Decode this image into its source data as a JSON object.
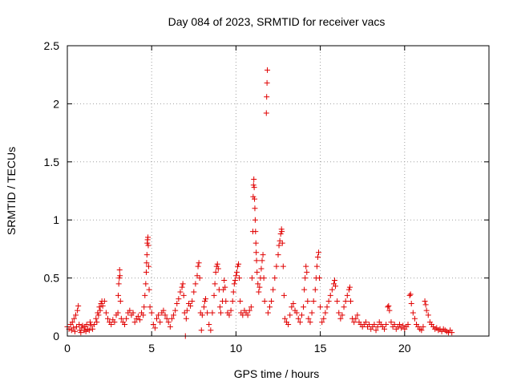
{
  "chart_data": {
    "type": "scatter",
    "title": "Day 084 of 2023, SRMTID for receiver vacs",
    "xlabel": "GPS time / hours",
    "ylabel": "SRMTID / TECUs",
    "xlim": [
      0,
      25
    ],
    "ylim": [
      0,
      2.5
    ],
    "xticks": [
      0,
      5,
      10,
      15,
      20
    ],
    "yticks": [
      0,
      0.5,
      1,
      1.5,
      2,
      2.5
    ],
    "xtick_labels": [
      "0",
      "5",
      "10",
      "15",
      "20"
    ],
    "ytick_labels": [
      "0",
      "0.5",
      "1",
      "1.5",
      "2",
      "2.5"
    ],
    "grid": true,
    "marker": "+",
    "color": "#e00000",
    "series": [
      {
        "name": "SRMTID",
        "points": [
          [
            0.0,
            0.08
          ],
          [
            0.1,
            0.06
          ],
          [
            0.2,
            0.1
          ],
          [
            0.25,
            0.05
          ],
          [
            0.3,
            0.12
          ],
          [
            0.35,
            0.07
          ],
          [
            0.4,
            0.15
          ],
          [
            0.45,
            0.04
          ],
          [
            0.5,
            0.18
          ],
          [
            0.55,
            0.08
          ],
          [
            0.6,
            0.22
          ],
          [
            0.65,
            0.26
          ],
          [
            0.7,
            0.1
          ],
          [
            0.75,
            0.05
          ],
          [
            0.8,
            0.03
          ],
          [
            0.85,
            0.07
          ],
          [
            0.9,
            0.09
          ],
          [
            1.0,
            0.05
          ],
          [
            1.05,
            0.08
          ],
          [
            1.1,
            0.04
          ],
          [
            1.15,
            0.1
          ],
          [
            1.2,
            0.06
          ],
          [
            1.3,
            0.05
          ],
          [
            1.35,
            0.12
          ],
          [
            1.4,
            0.09
          ],
          [
            1.5,
            0.06
          ],
          [
            1.6,
            0.1
          ],
          [
            1.7,
            0.15
          ],
          [
            1.75,
            0.12
          ],
          [
            1.8,
            0.2
          ],
          [
            1.85,
            0.18
          ],
          [
            1.9,
            0.25
          ],
          [
            1.95,
            0.22
          ],
          [
            2.0,
            0.28
          ],
          [
            2.05,
            0.3
          ],
          [
            2.1,
            0.26
          ],
          [
            2.2,
            0.3
          ],
          [
            2.3,
            0.2
          ],
          [
            2.4,
            0.15
          ],
          [
            2.5,
            0.12
          ],
          [
            2.6,
            0.1
          ],
          [
            2.7,
            0.14
          ],
          [
            2.8,
            0.12
          ],
          [
            2.9,
            0.18
          ],
          [
            3.0,
            0.2
          ],
          [
            3.02,
            0.35
          ],
          [
            3.05,
            0.45
          ],
          [
            3.08,
            0.5
          ],
          [
            3.1,
            0.57
          ],
          [
            3.12,
            0.52
          ],
          [
            3.15,
            0.3
          ],
          [
            3.2,
            0.15
          ],
          [
            3.3,
            0.12
          ],
          [
            3.4,
            0.1
          ],
          [
            3.5,
            0.15
          ],
          [
            3.6,
            0.2
          ],
          [
            3.7,
            0.22
          ],
          [
            3.8,
            0.18
          ],
          [
            3.9,
            0.2
          ],
          [
            4.0,
            0.12
          ],
          [
            4.1,
            0.15
          ],
          [
            4.2,
            0.17
          ],
          [
            4.3,
            0.14
          ],
          [
            4.4,
            0.2
          ],
          [
            4.5,
            0.18
          ],
          [
            4.55,
            0.25
          ],
          [
            4.6,
            0.35
          ],
          [
            4.65,
            0.45
          ],
          [
            4.68,
            0.55
          ],
          [
            4.7,
            0.63
          ],
          [
            4.72,
            0.7
          ],
          [
            4.74,
            0.8
          ],
          [
            4.76,
            0.83
          ],
          [
            4.78,
            0.85
          ],
          [
            4.8,
            0.78
          ],
          [
            4.82,
            0.6
          ],
          [
            4.85,
            0.4
          ],
          [
            4.9,
            0.25
          ],
          [
            5.0,
            0.2
          ],
          [
            5.1,
            0.1
          ],
          [
            5.2,
            0.07
          ],
          [
            5.3,
            0.15
          ],
          [
            5.4,
            0.18
          ],
          [
            5.5,
            0.12
          ],
          [
            5.6,
            0.2
          ],
          [
            5.7,
            0.22
          ],
          [
            5.8,
            0.18
          ],
          [
            5.9,
            0.15
          ],
          [
            6.0,
            0.12
          ],
          [
            6.1,
            0.08
          ],
          [
            6.2,
            0.15
          ],
          [
            6.3,
            0.18
          ],
          [
            6.4,
            0.22
          ],
          [
            6.5,
            0.28
          ],
          [
            6.6,
            0.32
          ],
          [
            6.7,
            0.38
          ],
          [
            6.8,
            0.42
          ],
          [
            6.85,
            0.45
          ],
          [
            6.9,
            0.35
          ],
          [
            6.95,
            0.2
          ],
          [
            7.0,
            0.0
          ],
          [
            7.05,
            0.15
          ],
          [
            7.1,
            0.22
          ],
          [
            7.2,
            0.28
          ],
          [
            7.3,
            0.26
          ],
          [
            7.4,
            0.3
          ],
          [
            7.5,
            0.38
          ],
          [
            7.6,
            0.45
          ],
          [
            7.7,
            0.52
          ],
          [
            7.75,
            0.6
          ],
          [
            7.8,
            0.63
          ],
          [
            7.85,
            0.5
          ],
          [
            7.9,
            0.2
          ],
          [
            7.95,
            0.05
          ],
          [
            8.0,
            0.18
          ],
          [
            8.1,
            0.25
          ],
          [
            8.15,
            0.3
          ],
          [
            8.2,
            0.32
          ],
          [
            8.3,
            0.2
          ],
          [
            8.4,
            0.1
          ],
          [
            8.5,
            0.05
          ],
          [
            8.6,
            0.2
          ],
          [
            8.7,
            0.35
          ],
          [
            8.75,
            0.45
          ],
          [
            8.8,
            0.55
          ],
          [
            8.85,
            0.6
          ],
          [
            8.9,
            0.62
          ],
          [
            8.95,
            0.58
          ],
          [
            9.0,
            0.4
          ],
          [
            9.05,
            0.25
          ],
          [
            9.1,
            0.2
          ],
          [
            9.2,
            0.3
          ],
          [
            9.25,
            0.4
          ],
          [
            9.3,
            0.48
          ],
          [
            9.35,
            0.42
          ],
          [
            9.4,
            0.3
          ],
          [
            9.5,
            0.2
          ],
          [
            9.6,
            0.18
          ],
          [
            9.7,
            0.22
          ],
          [
            9.8,
            0.3
          ],
          [
            9.85,
            0.38
          ],
          [
            9.9,
            0.45
          ],
          [
            9.95,
            0.48
          ],
          [
            10.0,
            0.52
          ],
          [
            10.05,
            0.55
          ],
          [
            10.1,
            0.6
          ],
          [
            10.15,
            0.62
          ],
          [
            10.2,
            0.5
          ],
          [
            10.25,
            0.3
          ],
          [
            10.3,
            0.2
          ],
          [
            10.4,
            0.18
          ],
          [
            10.5,
            0.22
          ],
          [
            10.6,
            0.2
          ],
          [
            10.7,
            0.18
          ],
          [
            10.8,
            0.22
          ],
          [
            10.9,
            0.25
          ],
          [
            10.95,
            0.5
          ],
          [
            11.0,
            0.9
          ],
          [
            11.02,
            1.2
          ],
          [
            11.04,
            1.3
          ],
          [
            11.06,
            1.35
          ],
          [
            11.08,
            1.28
          ],
          [
            11.1,
            1.18
          ],
          [
            11.12,
            1.1
          ],
          [
            11.14,
            1.0
          ],
          [
            11.16,
            0.9
          ],
          [
            11.18,
            0.8
          ],
          [
            11.2,
            0.72
          ],
          [
            11.22,
            0.65
          ],
          [
            11.25,
            0.55
          ],
          [
            11.3,
            0.45
          ],
          [
            11.35,
            0.38
          ],
          [
            11.4,
            0.42
          ],
          [
            11.45,
            0.5
          ],
          [
            11.5,
            0.58
          ],
          [
            11.55,
            0.65
          ],
          [
            11.6,
            0.7
          ],
          [
            11.65,
            0.5
          ],
          [
            11.7,
            0.3
          ],
          [
            11.8,
            1.92
          ],
          [
            11.82,
            2.06
          ],
          [
            11.84,
            2.18
          ],
          [
            11.86,
            2.29
          ],
          [
            11.9,
            0.2
          ],
          [
            12.0,
            0.25
          ],
          [
            12.1,
            0.3
          ],
          [
            12.2,
            0.4
          ],
          [
            12.3,
            0.5
          ],
          [
            12.4,
            0.6
          ],
          [
            12.5,
            0.7
          ],
          [
            12.55,
            0.78
          ],
          [
            12.6,
            0.82
          ],
          [
            12.65,
            0.88
          ],
          [
            12.7,
            0.92
          ],
          [
            12.72,
            0.9
          ],
          [
            12.75,
            0.8
          ],
          [
            12.8,
            0.6
          ],
          [
            12.85,
            0.35
          ],
          [
            12.9,
            0.15
          ],
          [
            13.0,
            0.12
          ],
          [
            13.1,
            0.1
          ],
          [
            13.2,
            0.18
          ],
          [
            13.3,
            0.25
          ],
          [
            13.4,
            0.28
          ],
          [
            13.5,
            0.22
          ],
          [
            13.6,
            0.2
          ],
          [
            13.7,
            0.15
          ],
          [
            13.8,
            0.12
          ],
          [
            13.9,
            0.18
          ],
          [
            14.0,
            0.25
          ],
          [
            14.05,
            0.4
          ],
          [
            14.1,
            0.5
          ],
          [
            14.15,
            0.6
          ],
          [
            14.2,
            0.55
          ],
          [
            14.25,
            0.3
          ],
          [
            14.3,
            0.15
          ],
          [
            14.4,
            0.12
          ],
          [
            14.5,
            0.2
          ],
          [
            14.6,
            0.3
          ],
          [
            14.7,
            0.4
          ],
          [
            14.75,
            0.5
          ],
          [
            14.8,
            0.6
          ],
          [
            14.85,
            0.68
          ],
          [
            14.9,
            0.72
          ],
          [
            14.95,
            0.5
          ],
          [
            15.0,
            0.25
          ],
          [
            15.1,
            0.12
          ],
          [
            15.2,
            0.15
          ],
          [
            15.3,
            0.2
          ],
          [
            15.4,
            0.25
          ],
          [
            15.5,
            0.3
          ],
          [
            15.6,
            0.35
          ],
          [
            15.7,
            0.4
          ],
          [
            15.8,
            0.45
          ],
          [
            15.85,
            0.48
          ],
          [
            15.9,
            0.43
          ],
          [
            16.0,
            0.3
          ],
          [
            16.1,
            0.2
          ],
          [
            16.2,
            0.15
          ],
          [
            16.3,
            0.18
          ],
          [
            16.4,
            0.25
          ],
          [
            16.5,
            0.3
          ],
          [
            16.6,
            0.35
          ],
          [
            16.7,
            0.4
          ],
          [
            16.75,
            0.42
          ],
          [
            16.8,
            0.3
          ],
          [
            16.9,
            0.15
          ],
          [
            17.0,
            0.12
          ],
          [
            17.1,
            0.15
          ],
          [
            17.2,
            0.18
          ],
          [
            17.3,
            0.12
          ],
          [
            17.4,
            0.1
          ],
          [
            17.5,
            0.08
          ],
          [
            17.6,
            0.1
          ],
          [
            17.7,
            0.12
          ],
          [
            17.8,
            0.08
          ],
          [
            17.9,
            0.1
          ],
          [
            18.0,
            0.06
          ],
          [
            18.1,
            0.08
          ],
          [
            18.2,
            0.1
          ],
          [
            18.3,
            0.05
          ],
          [
            18.4,
            0.08
          ],
          [
            18.5,
            0.12
          ],
          [
            18.6,
            0.1
          ],
          [
            18.7,
            0.08
          ],
          [
            18.8,
            0.06
          ],
          [
            18.9,
            0.1
          ],
          [
            19.0,
            0.25
          ],
          [
            19.05,
            0.26
          ],
          [
            19.1,
            0.22
          ],
          [
            19.2,
            0.12
          ],
          [
            19.3,
            0.08
          ],
          [
            19.4,
            0.1
          ],
          [
            19.5,
            0.06
          ],
          [
            19.6,
            0.08
          ],
          [
            19.7,
            0.1
          ],
          [
            19.8,
            0.07
          ],
          [
            19.9,
            0.09
          ],
          [
            20.0,
            0.06
          ],
          [
            20.1,
            0.08
          ],
          [
            20.2,
            0.1
          ],
          [
            20.3,
            0.35
          ],
          [
            20.35,
            0.36
          ],
          [
            20.4,
            0.28
          ],
          [
            20.5,
            0.2
          ],
          [
            20.6,
            0.15
          ],
          [
            20.7,
            0.1
          ],
          [
            20.8,
            0.08
          ],
          [
            20.9,
            0.06
          ],
          [
            21.0,
            0.05
          ],
          [
            21.1,
            0.08
          ],
          [
            21.2,
            0.3
          ],
          [
            21.25,
            0.27
          ],
          [
            21.3,
            0.22
          ],
          [
            21.4,
            0.18
          ],
          [
            21.5,
            0.12
          ],
          [
            21.6,
            0.1
          ],
          [
            21.7,
            0.08
          ],
          [
            21.8,
            0.06
          ],
          [
            21.9,
            0.07
          ],
          [
            22.0,
            0.05
          ],
          [
            22.1,
            0.06
          ],
          [
            22.2,
            0.04
          ],
          [
            22.3,
            0.06
          ],
          [
            22.4,
            0.05
          ],
          [
            22.5,
            0.04
          ],
          [
            22.6,
            0.03
          ],
          [
            22.7,
            0.05
          ],
          [
            22.8,
            0.03
          ]
        ]
      }
    ]
  }
}
